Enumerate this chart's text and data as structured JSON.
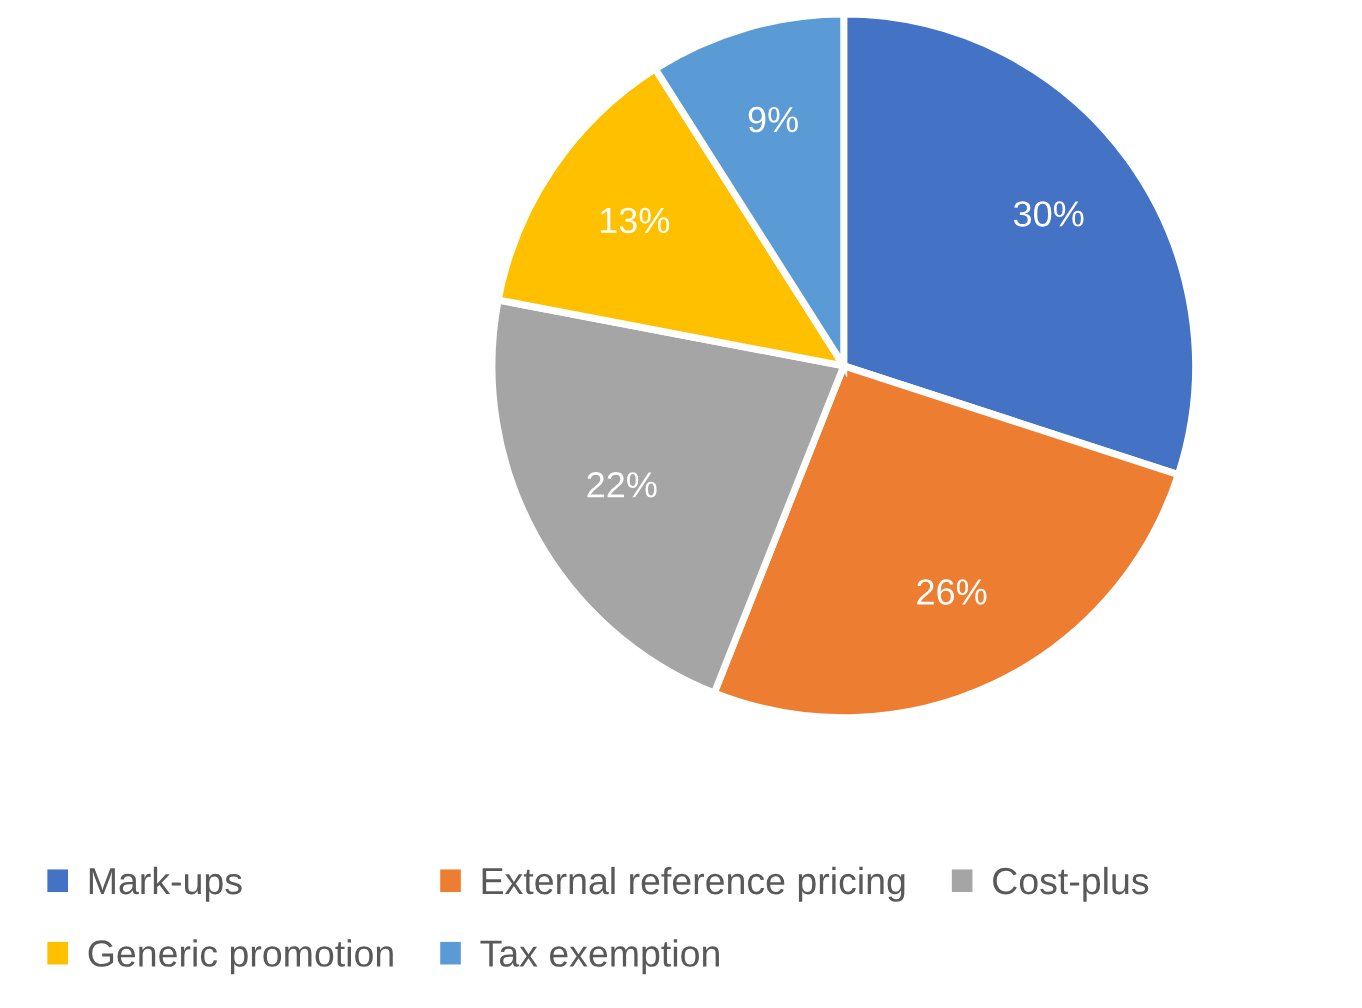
{
  "chart_data": {
    "type": "pie",
    "categories": [
      "Mark-ups",
      "External reference pricing",
      "Cost-plus",
      "Generic promotion",
      "Tax exemption"
    ],
    "values": [
      30,
      26,
      22,
      13,
      9
    ],
    "colors": [
      "#4472c4",
      "#ed7d31",
      "#a5a5a5",
      "#ffc000",
      "#5b9bd5"
    ],
    "value_labels": [
      "30%",
      "26%",
      "22%",
      "13%",
      "9%"
    ],
    "legend": "bottom"
  }
}
